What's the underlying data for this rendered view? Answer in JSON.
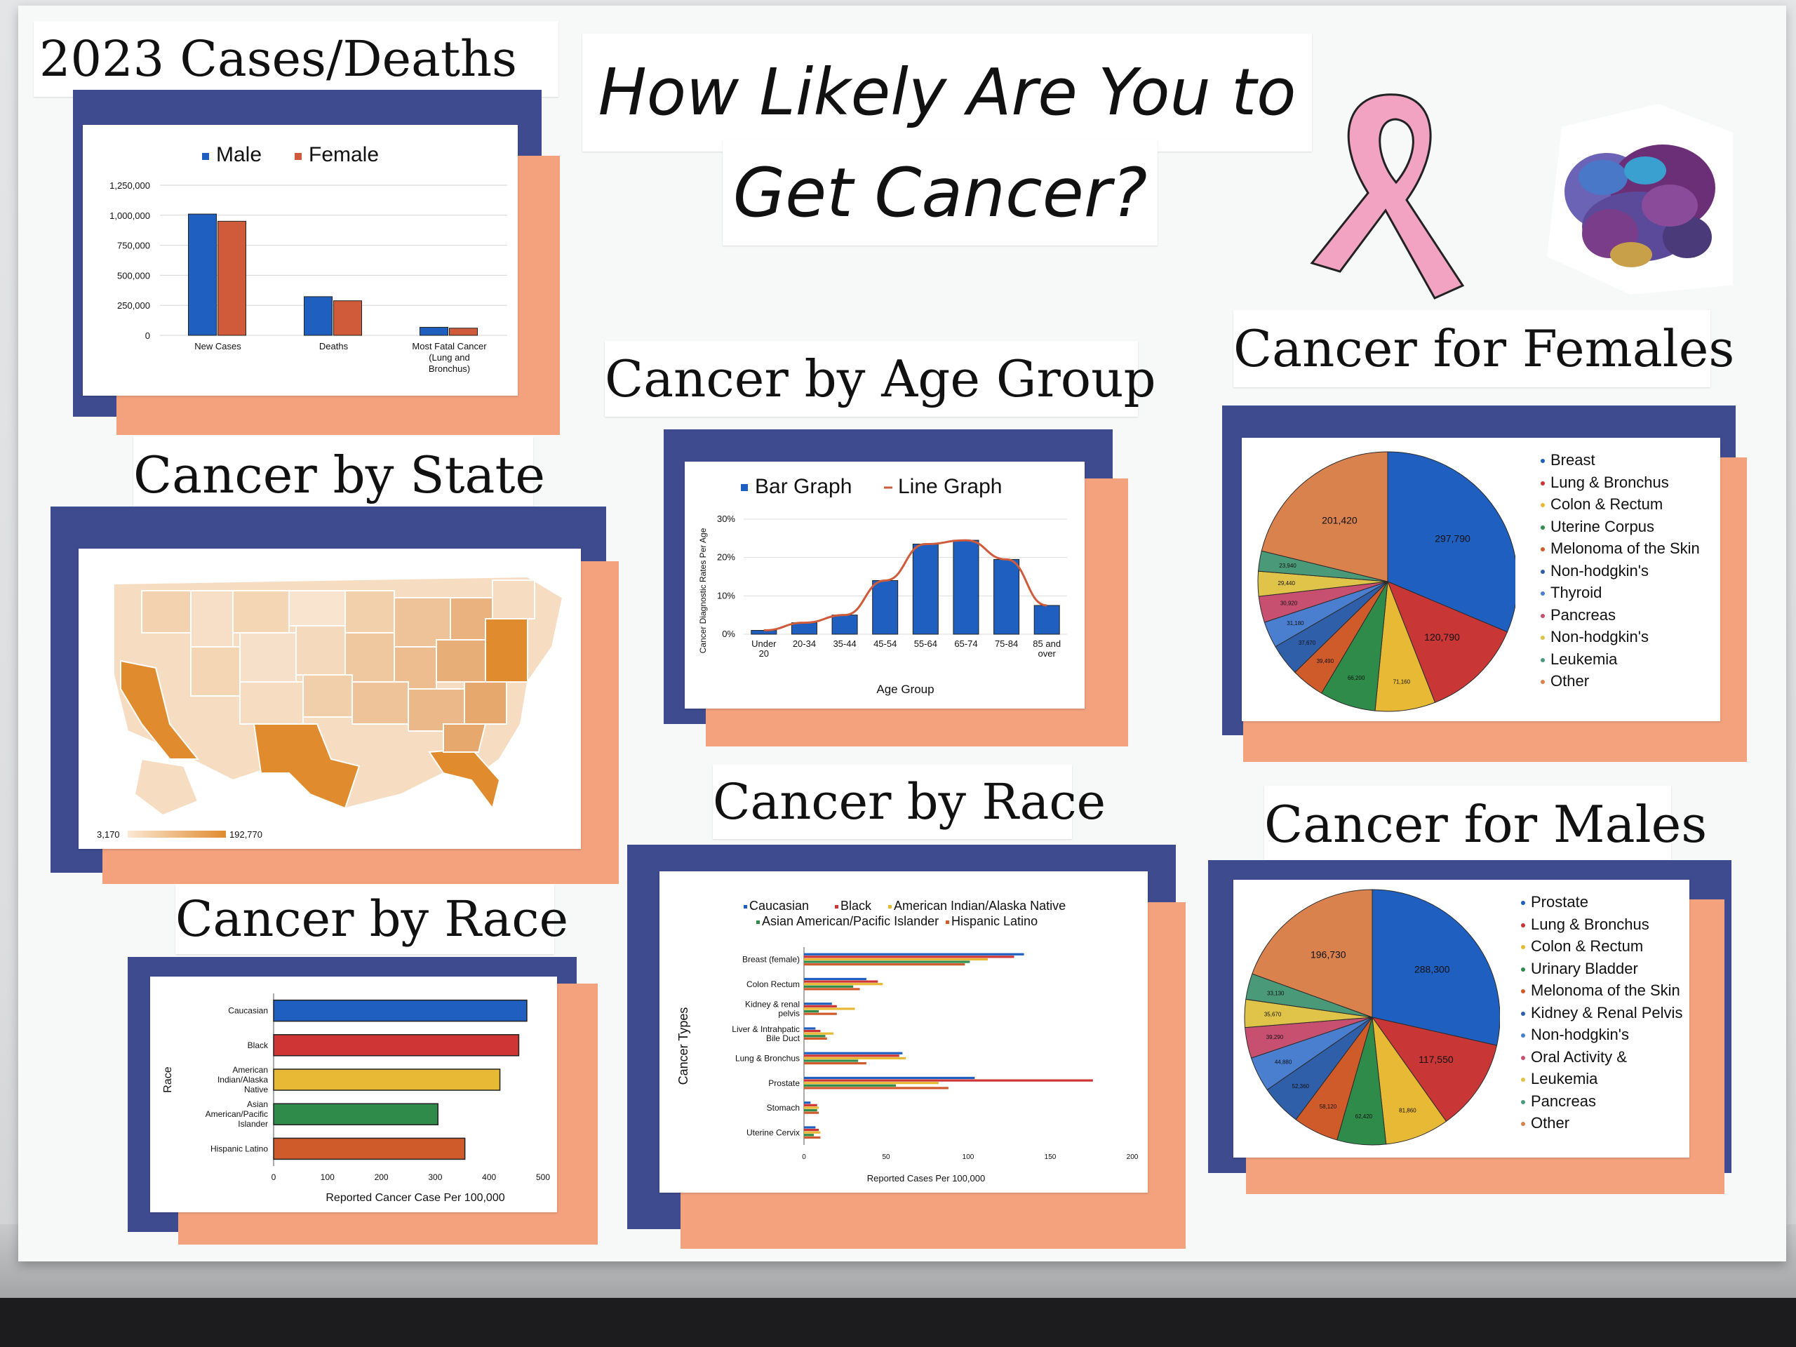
{
  "title": {
    "line1": "How Likely Are You to",
    "line2": "Get Cancer?"
  },
  "sections": {
    "cases_deaths": "2023 Cases/Deaths",
    "state": "Cancer by State",
    "race_left": "Cancer by Race",
    "age": "Cancer by Age Group",
    "race_center": "Cancer by Race",
    "females": "Cancer for Females",
    "males": "Cancer for Males"
  },
  "chart_data": [
    {
      "id": "cases_deaths",
      "type": "bar",
      "categories": [
        "New Cases",
        "Deaths",
        "Most Fatal Cancer (Lung and Bronchus)"
      ],
      "series": [
        {
          "name": "Male",
          "values": [
            1010000,
            322000,
            67000
          ]
        },
        {
          "name": "Female",
          "values": [
            950000,
            288000,
            60000
          ]
        }
      ],
      "ylim": [
        0,
        1250000
      ],
      "yticks": [
        "0",
        "250,000",
        "500,000",
        "750,000",
        "1,000,000",
        "1,250,000"
      ],
      "title": "",
      "xlabel": "",
      "ylabel": "",
      "legend": "top",
      "colors": [
        "#1f5fbf",
        "#cf5b3b"
      ]
    },
    {
      "id": "state",
      "type": "heatmap",
      "legend_min": "3,170",
      "legend_max": "192,770",
      "colors": [
        "#fbe8d4",
        "#e08b2e"
      ]
    },
    {
      "id": "race_left",
      "type": "bar",
      "orientation": "horizontal",
      "categories": [
        "Caucasian",
        "Black",
        "American Indian/Alaska Native",
        "Asian American/Pacific Islander",
        "Hispanic Latino"
      ],
      "values": [
        470,
        455,
        420,
        305,
        355
      ],
      "xlim": [
        0,
        500
      ],
      "xticks": [
        "0",
        "100",
        "200",
        "300",
        "400",
        "500"
      ],
      "xlabel": "Reported Cancer Case Per 100,000",
      "ylabel": "Race",
      "colors": [
        "#1f5fbf",
        "#cf3535",
        "#e8b935",
        "#2e8b4a",
        "#cf5b2b"
      ]
    },
    {
      "id": "age",
      "type": "bar",
      "overlay": "line",
      "categories": [
        "Under 20",
        "20-34",
        "35-44",
        "45-54",
        "55-64",
        "65-74",
        "75-84",
        "85 and over"
      ],
      "values": [
        1,
        3,
        5,
        14,
        23.5,
        24.5,
        19.5,
        7.5
      ],
      "ylim": [
        0,
        30
      ],
      "yticks": [
        "0%",
        "10%",
        "20%",
        "30%"
      ],
      "series_names": [
        "Bar Graph",
        "Line Graph"
      ],
      "xlabel": "Age Group",
      "ylabel": "Cancer Diagnostic Rates Per Age",
      "legend": "top",
      "colors": [
        "#1f5fbf",
        "#cf5b3b"
      ]
    },
    {
      "id": "race_center",
      "type": "bar",
      "orientation": "horizontal",
      "categories": [
        "Breast (female)",
        "Colon Rectum",
        "Kidney & renal pelvis",
        "Liver & Intrahpatic Bile Duct",
        "Lung & Bronchus",
        "Prostate",
        "Stomach",
        "Uterine Cervix"
      ],
      "series": [
        {
          "name": "Caucasian",
          "values": [
            134,
            38,
            17,
            7,
            60,
            104,
            4,
            7
          ]
        },
        {
          "name": "Black",
          "values": [
            128,
            45,
            20,
            10,
            58,
            176,
            8,
            9
          ]
        },
        {
          "name": "American Indian/Alaska Native",
          "values": [
            112,
            48,
            31,
            18,
            62,
            82,
            9,
            10
          ]
        },
        {
          "name": "Asian American/Pacific Islander",
          "values": [
            101,
            30,
            9,
            13,
            33,
            56,
            8,
            6
          ]
        },
        {
          "name": "Hispanic Latino",
          "values": [
            98,
            34,
            20,
            14,
            38,
            88,
            9,
            10
          ]
        }
      ],
      "xlim": [
        0,
        200
      ],
      "xticks": [
        "0",
        "50",
        "100",
        "150",
        "200"
      ],
      "xlabel": "Reported Cases Per 100,000",
      "ylabel": "Cancer Types",
      "legend": "top",
      "colors": [
        "#1f5fbf",
        "#cf3535",
        "#e8b935",
        "#2e8b4a",
        "#cf5b2b"
      ]
    },
    {
      "id": "females",
      "type": "pie",
      "labels": [
        "Breast",
        "Lung & Bronchus",
        "Colon & Rectum",
        "Uterine Corpus",
        "Melonoma of the Skin",
        "Non-hodgkin's",
        "Thyroid",
        "Pancreas",
        "Non-hodgkin's",
        "Leukemia",
        "Other"
      ],
      "values": [
        297790,
        120790,
        71160,
        66200,
        39490,
        37670,
        31180,
        30920,
        29440,
        23940,
        201420
      ],
      "value_labels": [
        "297,790",
        "120,790",
        "71,160",
        "66,200",
        "39,490",
        "37,670",
        "31,180",
        "30,920",
        "29,440",
        "23,940",
        "201,420"
      ],
      "legend": "right",
      "colors": [
        "#1f5fbf",
        "#c83636",
        "#e8b935",
        "#2e8b4a",
        "#cf5b2b",
        "#2f5fa8",
        "#4a7fd0",
        "#c75070",
        "#e0c44a",
        "#4a9a7a",
        "#d9824e"
      ]
    },
    {
      "id": "males",
      "type": "pie",
      "labels": [
        "Prostate",
        "Lung & Bronchus",
        "Colon & Rectum",
        "Urinary Bladder",
        "Melonoma of the Skin",
        "Kidney & Renal Pelvis",
        "Non-hodgkin's",
        "Oral Activity &",
        "Leukemia",
        "Pancreas",
        "Other"
      ],
      "values": [
        288300,
        117550,
        81860,
        62420,
        58120,
        52360,
        44880,
        39290,
        35670,
        33130,
        196730
      ],
      "value_labels": [
        "288,300",
        "117,550",
        "81,860",
        "62,420",
        "58,120",
        "52,360",
        "44,880",
        "39,290",
        "35,670",
        "33,130",
        "196,730"
      ],
      "legend": "right",
      "colors": [
        "#1f5fbf",
        "#c83636",
        "#e8b935",
        "#2e8b4a",
        "#cf5b2b",
        "#2f5fa8",
        "#4a7fd0",
        "#c75070",
        "#e0c44a",
        "#4a9a7a",
        "#d9824e"
      ]
    }
  ]
}
